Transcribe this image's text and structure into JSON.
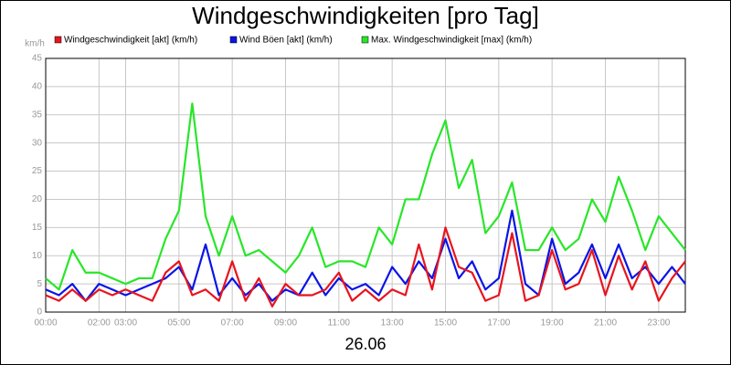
{
  "chart_data": {
    "type": "line",
    "title": "Windgeschwindigkeiten [pro Tag]",
    "y_unit": "km/h",
    "x_caption": "26.06",
    "x": [
      0,
      0.5,
      1,
      1.5,
      2,
      2.5,
      3,
      3.5,
      4,
      4.5,
      5,
      5.5,
      6,
      6.5,
      7,
      7.5,
      8,
      8.5,
      9,
      9.5,
      10,
      10.5,
      11,
      11.5,
      12,
      12.5,
      13,
      13.5,
      14,
      14.5,
      15,
      15.5,
      16,
      16.5,
      17,
      17.5,
      18,
      18.5,
      19,
      19.5,
      20,
      20.5,
      21,
      21.5,
      22,
      22.5,
      23,
      23.5,
      24
    ],
    "series": [
      {
        "name": "Windgeschwindigkeit [akt] (km/h)",
        "color": "#e8141e",
        "values": [
          3,
          2,
          4,
          2,
          4,
          3,
          4,
          3,
          2,
          7,
          9,
          3,
          4,
          2,
          9,
          2,
          6,
          1,
          5,
          3,
          3,
          4,
          7,
          2,
          4,
          2,
          4,
          3,
          12,
          4,
          15,
          8,
          7,
          2,
          3,
          14,
          2,
          3,
          11,
          4,
          5,
          11,
          3,
          10,
          4,
          9,
          2,
          6,
          9
        ]
      },
      {
        "name": "Wind Böen [akt] (km/h)",
        "color": "#0a14e6",
        "values": [
          4,
          3,
          5,
          2,
          5,
          4,
          3,
          4,
          5,
          6,
          8,
          4,
          12,
          3,
          6,
          3,
          5,
          2,
          4,
          3,
          7,
          3,
          6,
          4,
          5,
          3,
          8,
          5,
          9,
          6,
          13,
          6,
          9,
          4,
          6,
          18,
          5,
          3,
          13,
          5,
          7,
          12,
          6,
          12,
          6,
          8,
          5,
          8,
          5
        ]
      },
      {
        "name": "Max. Windgeschwindigkeit [max] (km/h)",
        "color": "#28e628",
        "values": [
          6,
          4,
          11,
          7,
          7,
          6,
          5,
          6,
          6,
          13,
          18,
          37,
          17,
          10,
          17,
          10,
          11,
          9,
          7,
          10,
          15,
          8,
          9,
          9,
          8,
          15,
          12,
          20,
          20,
          28,
          34,
          22,
          27,
          14,
          17,
          23,
          11,
          11,
          15,
          11,
          13,
          20,
          16,
          24,
          18,
          11,
          17,
          14,
          11
        ]
      }
    ],
    "xlim": [
      0,
      24
    ],
    "xticks": [
      {
        "value": 0,
        "label": "00:00"
      },
      {
        "value": 2,
        "label": "02:00"
      },
      {
        "value": 3,
        "label": "03:00"
      },
      {
        "value": 5,
        "label": "05:00"
      },
      {
        "value": 7,
        "label": "07:00"
      },
      {
        "value": 9,
        "label": "09:00"
      },
      {
        "value": 11,
        "label": "11:00"
      },
      {
        "value": 13,
        "label": "13:00"
      },
      {
        "value": 15,
        "label": "15:00"
      },
      {
        "value": 17,
        "label": "17:00"
      },
      {
        "value": 19,
        "label": "19:00"
      },
      {
        "value": 21,
        "label": "21:00"
      },
      {
        "value": 23,
        "label": "23:00"
      }
    ],
    "ylim": [
      0,
      45
    ],
    "yticks": [
      0,
      5,
      10,
      15,
      20,
      25,
      30,
      35,
      40,
      45
    ],
    "grid": true
  }
}
